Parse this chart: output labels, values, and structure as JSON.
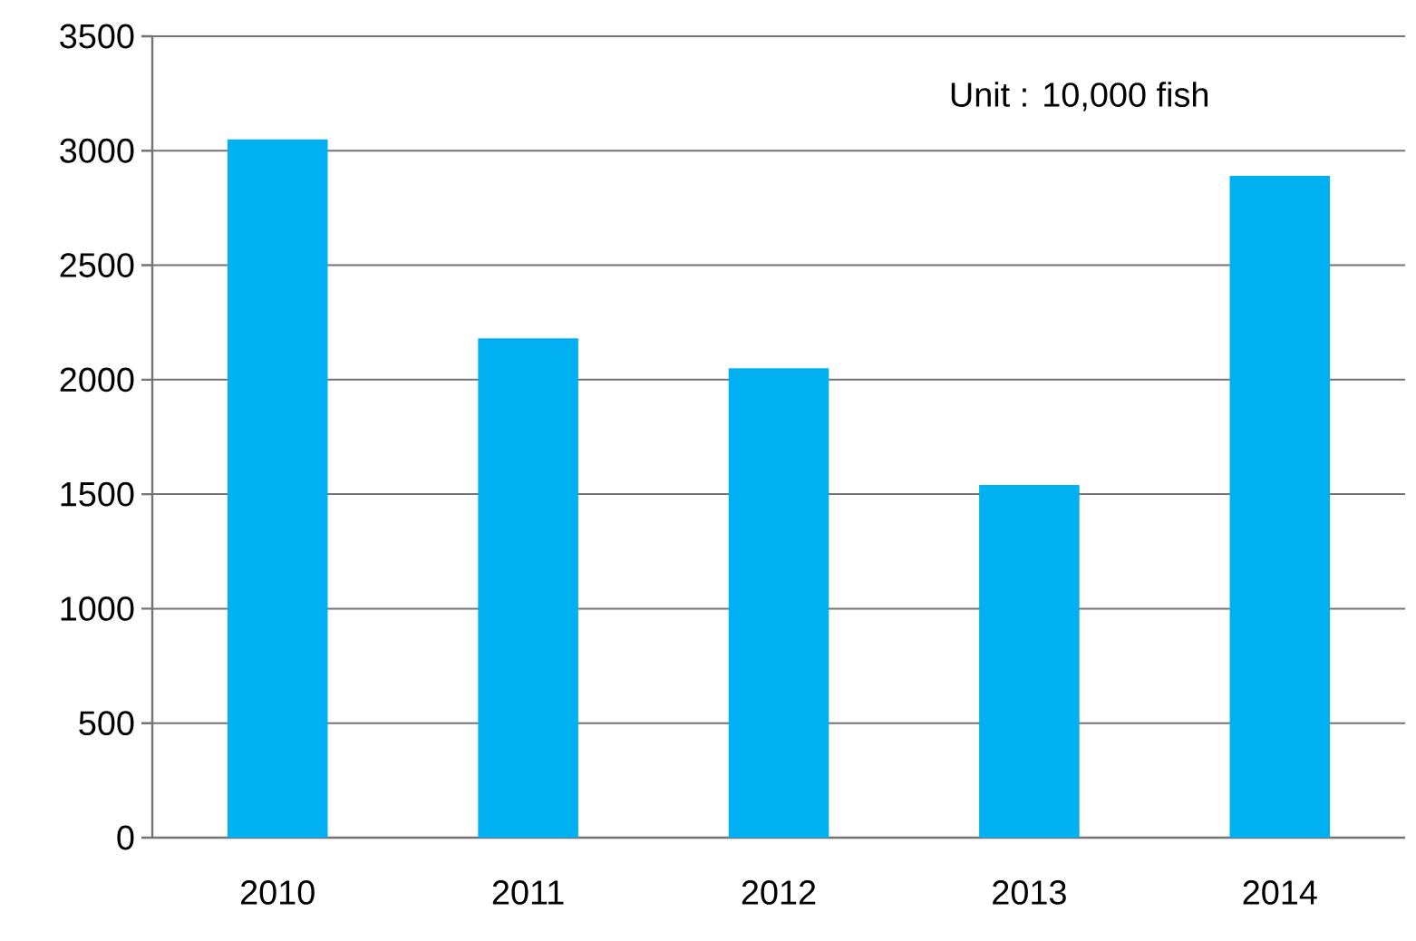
{
  "chart_data": {
    "type": "bar",
    "categories": [
      "2010",
      "2011",
      "2012",
      "2013",
      "2014"
    ],
    "values": [
      3050,
      2180,
      2050,
      1540,
      2890
    ],
    "color": "#00b0f0",
    "ylim": [
      0,
      3500
    ],
    "yticks": [
      0,
      500,
      1000,
      1500,
      2000,
      2500,
      3000,
      3500
    ],
    "grid": "y",
    "annotations": [
      "Unit : 10,000 fish"
    ]
  }
}
